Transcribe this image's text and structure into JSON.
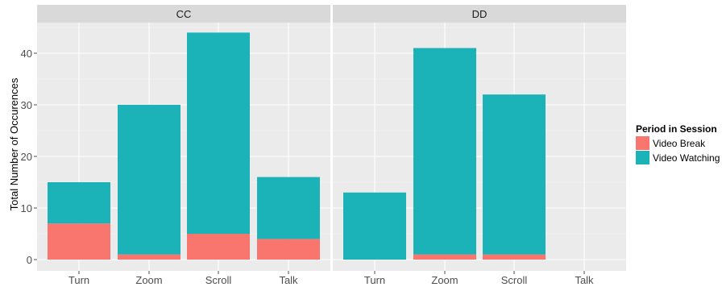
{
  "chart_data": {
    "type": "bar",
    "stacked": true,
    "ylabel": "Total Number of Occurences",
    "xlabel": "",
    "ylim": [
      0,
      45
    ],
    "yticks": [
      0,
      10,
      20,
      30,
      40
    ],
    "grid": true,
    "legend": {
      "title": "Period in Session",
      "position": "right",
      "items": [
        {
          "label": "Video Break",
          "color": "#f8766d"
        },
        {
          "label": "Video Watching",
          "color": "#00bfc4"
        }
      ]
    },
    "categories": [
      "Turn",
      "Zoom",
      "Scroll",
      "Talk"
    ],
    "panels": [
      {
        "label": "CC",
        "series": [
          {
            "name": "Video Break",
            "values": [
              7,
              1,
              5,
              4
            ]
          },
          {
            "name": "Video Watching",
            "values": [
              8,
              29,
              39,
              12
            ]
          }
        ]
      },
      {
        "label": "DD",
        "series": [
          {
            "name": "Video Break",
            "values": [
              0,
              1,
              1,
              0
            ]
          },
          {
            "name": "Video Watching",
            "values": [
              13,
              40,
              31,
              0
            ]
          }
        ]
      }
    ]
  },
  "colors": {
    "panel_background": "#ebebeb",
    "strip_background": "#d9d9d9",
    "grid_major": "#ffffff",
    "grid_minor": "#f5f5f5",
    "video_break": "#f8766d",
    "video_watching": "#1cb3b8"
  }
}
